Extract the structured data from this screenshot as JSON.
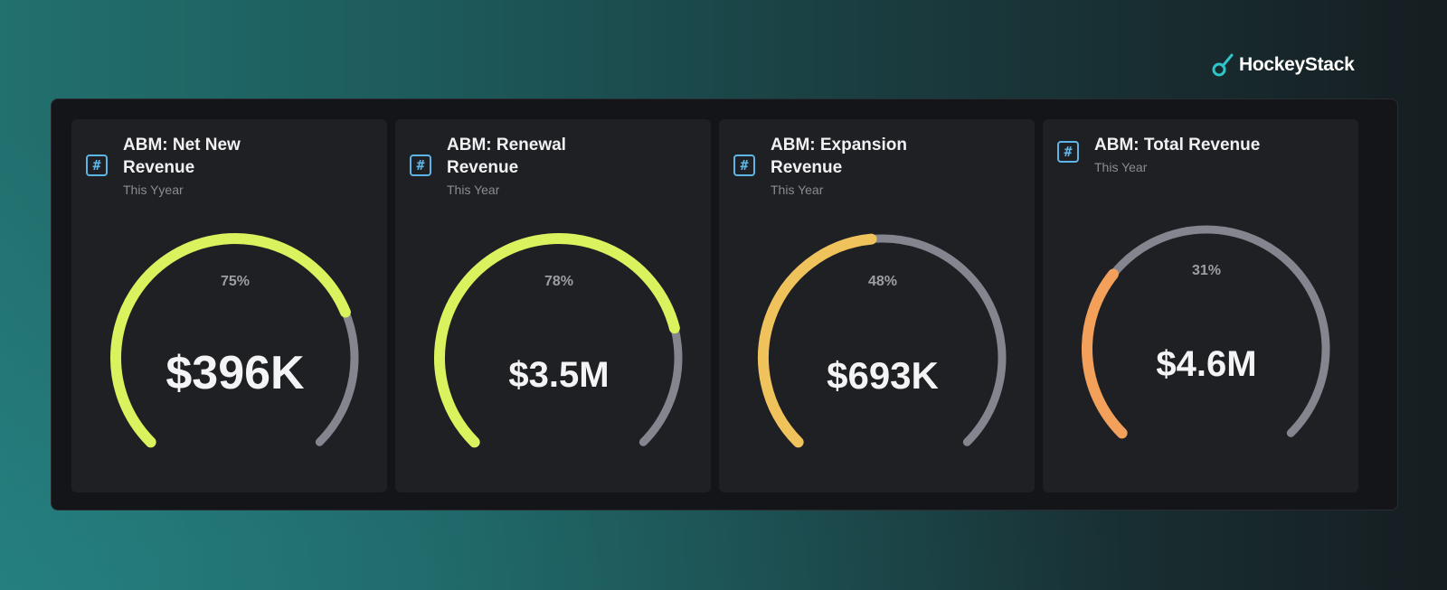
{
  "brand": {
    "name": "HockeyStack",
    "accent": "#2fc4c8"
  },
  "colors": {
    "track": "#84858e",
    "lime": "#d9f25e",
    "amber": "#f0c25c",
    "orange": "#f2a05a",
    "icon": "#5db5e6"
  },
  "cards": [
    {
      "title": "ABM: Net New Revenue",
      "subtitle": "This Yyear",
      "icon": "hash-icon",
      "value": "$396K",
      "percent_label": "75%",
      "percent": 75,
      "color": "#d9f25e"
    },
    {
      "title": "ABM: Renewal Revenue",
      "subtitle": "This Year",
      "icon": "hash-icon",
      "value": "$3.5M",
      "percent_label": "78%",
      "percent": 78,
      "color": "#d9f25e"
    },
    {
      "title": "ABM: Expansion Revenue",
      "subtitle": "This Year",
      "icon": "hash-icon",
      "value": "$693K",
      "percent_label": "48%",
      "percent": 48,
      "color": "#f0c25c"
    },
    {
      "title": "ABM: Total Revenue",
      "subtitle": "This Year",
      "icon": "hash-icon",
      "value": "$4.6M",
      "percent_label": "31%",
      "percent": 31,
      "color": "#f2a05a"
    }
  ]
}
